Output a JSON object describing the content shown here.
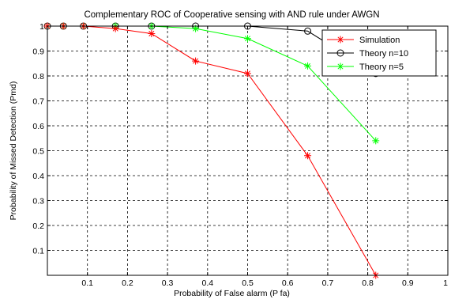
{
  "chart_data": {
    "type": "line",
    "title": "Complementary ROC of Cooperative sensing with AND rule under AWGN",
    "xlabel": "Probability of False alarm (P fa)",
    "ylabel": "Probability of Missed Detection (Pmd)",
    "xlim": [
      0,
      1
    ],
    "ylim": [
      0,
      1
    ],
    "grid": true,
    "legend_position": "top-right",
    "x_ticks": [
      "0.1",
      "0.2",
      "0.3",
      "0.4",
      "0.5",
      "0.6",
      "0.7",
      "0.8",
      "0.9",
      "1"
    ],
    "y_ticks": [
      "0.1",
      "0.2",
      "0.3",
      "0.4",
      "0.5",
      "0.6",
      "0.7",
      "0.8",
      "0.9",
      "1"
    ],
    "series": [
      {
        "name": "Simulation",
        "color": "#ff0000",
        "marker": "star",
        "x": [
          0.0,
          0.04,
          0.09,
          0.17,
          0.26,
          0.37,
          0.5,
          0.65,
          0.82
        ],
        "y": [
          1.0,
          1.0,
          1.0,
          0.99,
          0.97,
          0.86,
          0.81,
          0.48,
          0.0
        ]
      },
      {
        "name": "Theory n=10",
        "color": "#000000",
        "marker": "circle",
        "x": [
          0.0,
          0.04,
          0.09,
          0.17,
          0.26,
          0.37,
          0.5,
          0.65,
          0.82
        ],
        "y": [
          1.0,
          1.0,
          1.0,
          1.0,
          1.0,
          1.0,
          1.0,
          0.98,
          0.81
        ]
      },
      {
        "name": "Theory n=5",
        "color": "#00ff00",
        "marker": "star",
        "x": [
          0.0,
          0.04,
          0.09,
          0.17,
          0.26,
          0.37,
          0.5,
          0.65,
          0.82
        ],
        "y": [
          1.0,
          1.0,
          1.0,
          1.0,
          1.0,
          0.99,
          0.95,
          0.84,
          0.54
        ]
      }
    ]
  }
}
